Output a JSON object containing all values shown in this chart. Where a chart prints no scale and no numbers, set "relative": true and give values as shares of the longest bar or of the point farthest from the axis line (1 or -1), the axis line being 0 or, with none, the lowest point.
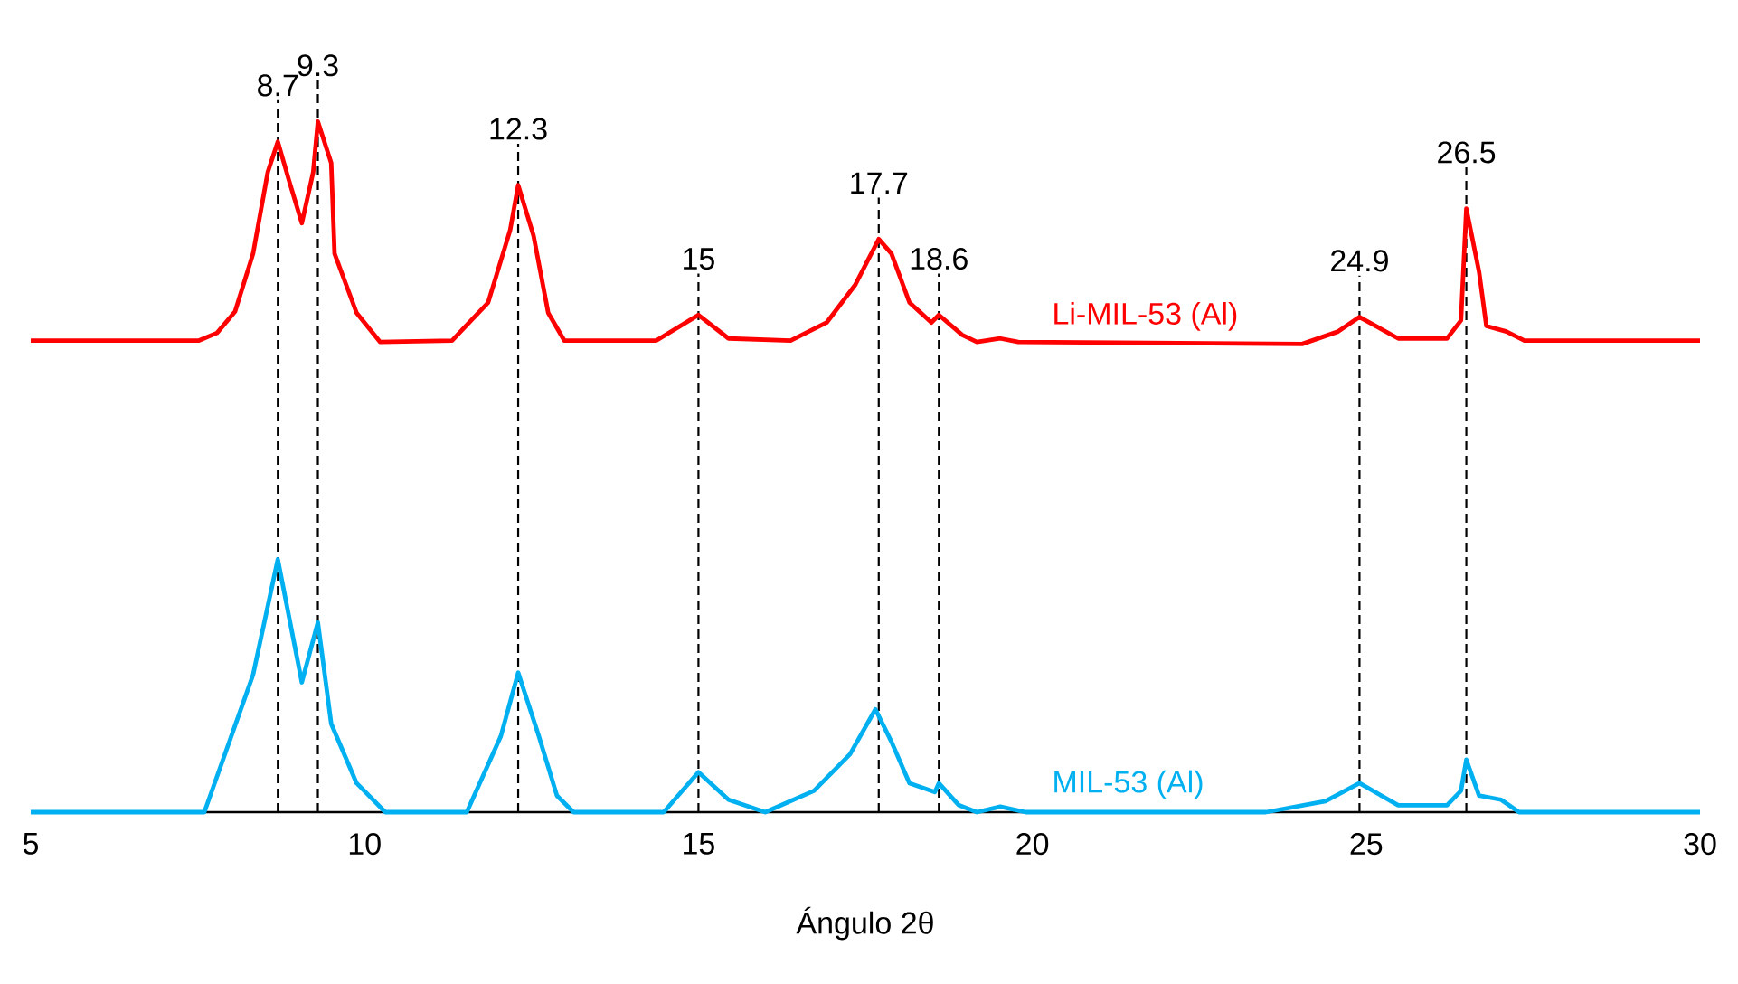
{
  "chart_data": {
    "type": "line",
    "xlabel": "Ángulo 2θ",
    "relative": true,
    "xlim": [
      5,
      30
    ],
    "xticks": [
      5,
      10,
      15,
      20,
      25,
      30
    ],
    "grid": false,
    "marker": "none",
    "line_style": "solid",
    "series": [
      {
        "name": "Li-MIL-53 (Al)",
        "color": "#ff0000",
        "x": [
          5,
          7.52,
          7.79,
          8.06,
          8.33,
          8.55,
          8.7,
          8.87,
          9.06,
          9.23,
          9.3,
          9.5,
          9.55,
          9.88,
          10.23,
          11.31,
          11.85,
          12.18,
          12.3,
          12.53,
          12.75,
          12.99,
          14.37,
          15.0,
          15.45,
          16.38,
          16.92,
          17.35,
          17.7,
          17.89,
          18.16,
          18.49,
          18.6,
          18.95,
          19.17,
          19.52,
          19.79,
          24.04,
          24.58,
          24.9,
          25.48,
          26.21,
          26.42,
          26.5,
          26.69,
          26.8,
          27.1,
          27.37,
          30
        ],
        "values": [
          0.683,
          0.683,
          0.694,
          0.725,
          0.809,
          0.927,
          0.971,
          0.914,
          0.853,
          0.927,
          1.0,
          0.94,
          0.809,
          0.723,
          0.681,
          0.683,
          0.738,
          0.843,
          0.908,
          0.835,
          0.723,
          0.683,
          0.683,
          0.72,
          0.686,
          0.683,
          0.709,
          0.764,
          0.83,
          0.809,
          0.738,
          0.709,
          0.72,
          0.691,
          0.681,
          0.686,
          0.681,
          0.678,
          0.696,
          0.717,
          0.686,
          0.686,
          0.712,
          0.874,
          0.783,
          0.704,
          0.696,
          0.683,
          0.683
        ]
      },
      {
        "name": "MIL-53 (Al)",
        "color": "#00b0f0",
        "x": [
          5,
          7.6,
          8.33,
          8.7,
          9.06,
          9.3,
          9.5,
          9.88,
          10.31,
          11.53,
          12.04,
          12.3,
          12.61,
          12.88,
          13.13,
          14.48,
          15.0,
          15.45,
          16.0,
          16.73,
          17.27,
          17.65,
          17.89,
          18.16,
          18.54,
          18.6,
          18.9,
          19.17,
          19.52,
          19.9,
          23.5,
          24.39,
          24.9,
          25.48,
          26.21,
          26.42,
          26.5,
          26.69,
          27.02,
          27.29,
          30
        ],
        "values": [
          0,
          0,
          0.199,
          0.366,
          0.188,
          0.275,
          0.128,
          0.042,
          0,
          0,
          0.11,
          0.202,
          0.11,
          0.024,
          0,
          0,
          0.058,
          0.018,
          0,
          0.031,
          0.084,
          0.149,
          0.102,
          0.042,
          0.029,
          0.042,
          0.01,
          0,
          0.008,
          0,
          0,
          0.016,
          0.042,
          0.01,
          0.01,
          0.031,
          0.076,
          0.024,
          0.018,
          0,
          0
        ]
      }
    ],
    "ref_lines": [
      {
        "axis": "x",
        "value": 8.7,
        "label": "8.7",
        "line_style": "dashed",
        "color": "#000000"
      },
      {
        "axis": "x",
        "value": 9.3,
        "label": "9.3",
        "line_style": "dashed",
        "color": "#000000"
      },
      {
        "axis": "x",
        "value": 12.3,
        "label": "12.3",
        "line_style": "dashed",
        "color": "#000000"
      },
      {
        "axis": "x",
        "value": 15,
        "label": "15",
        "line_style": "dashed",
        "color": "#000000"
      },
      {
        "axis": "x",
        "value": 17.7,
        "label": "17.7",
        "line_style": "dashed",
        "color": "#000000"
      },
      {
        "axis": "x",
        "value": 18.6,
        "label": "18.6",
        "line_style": "dashed",
        "color": "#000000"
      },
      {
        "axis": "x",
        "value": 24.9,
        "label": "24.9",
        "line_style": "dashed",
        "color": "#000000"
      },
      {
        "axis": "x",
        "value": 26.5,
        "label": "26.5",
        "line_style": "dashed",
        "color": "#000000"
      }
    ]
  }
}
